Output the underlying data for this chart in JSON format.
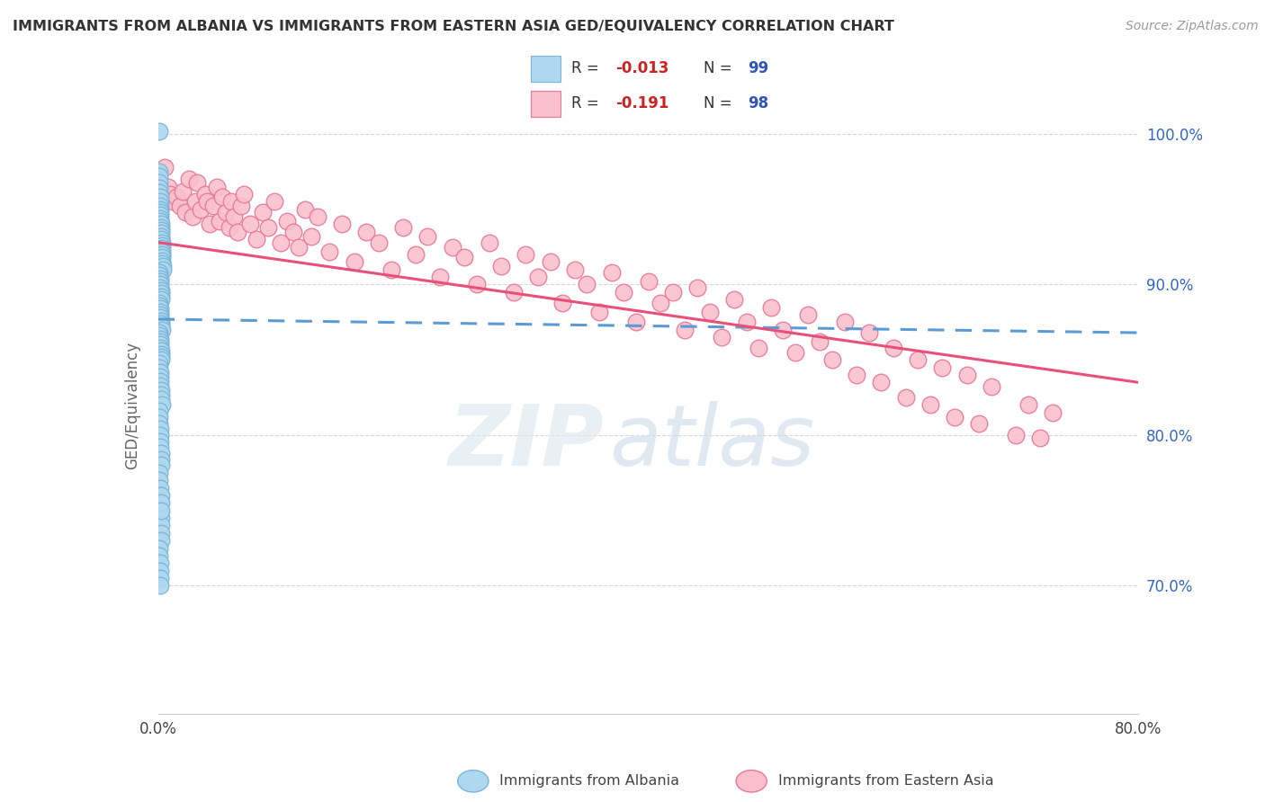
{
  "title": "IMMIGRANTS FROM ALBANIA VS IMMIGRANTS FROM EASTERN ASIA GED/EQUIVALENCY CORRELATION CHART",
  "source": "Source: ZipAtlas.com",
  "ylabel": "GED/Equivalency",
  "yticks": [
    0.7,
    0.8,
    0.9,
    1.0
  ],
  "ytick_labels": [
    "70.0%",
    "80.0%",
    "90.0%",
    "100.0%"
  ],
  "xlim": [
    0.0,
    0.8
  ],
  "ylim": [
    0.615,
    1.025
  ],
  "color_albania": "#add8f0",
  "color_albania_edge": "#7ab4d8",
  "color_eastern_asia": "#f9c0cc",
  "color_eastern_asia_edge": "#e87898",
  "color_albania_line": "#5b9bd5",
  "color_eastern_asia_line": "#e8507a",
  "watermark_text": "ZIP",
  "watermark_text2": "atlas",
  "background_color": "#ffffff",
  "grid_color": "#d8d8d8",
  "albania_x": [
    0.0008,
    0.0008,
    0.001,
    0.001,
    0.0012,
    0.0012,
    0.0014,
    0.0014,
    0.0016,
    0.0016,
    0.0018,
    0.0018,
    0.002,
    0.002,
    0.0022,
    0.0022,
    0.0024,
    0.0024,
    0.0026,
    0.0026,
    0.0028,
    0.0028,
    0.003,
    0.003,
    0.0032,
    0.0032,
    0.0034,
    0.0034,
    0.0036,
    0.0038,
    0.0009,
    0.0011,
    0.0013,
    0.0015,
    0.0017,
    0.0019,
    0.0021,
    0.0023,
    0.0025,
    0.0027,
    0.001,
    0.0012,
    0.0014,
    0.0016,
    0.0018,
    0.002,
    0.0022,
    0.0024,
    0.0026,
    0.0028,
    0.0009,
    0.0011,
    0.0013,
    0.0015,
    0.0017,
    0.0019,
    0.0021,
    0.0023,
    0.0025,
    0.0027,
    0.001,
    0.0012,
    0.0014,
    0.0016,
    0.0018,
    0.002,
    0.0022,
    0.0024,
    0.0026,
    0.0028,
    0.0008,
    0.001,
    0.0012,
    0.0014,
    0.0016,
    0.0018,
    0.002,
    0.0022,
    0.0024,
    0.0026,
    0.0009,
    0.0011,
    0.0013,
    0.0015,
    0.0017,
    0.0019,
    0.0021,
    0.0023,
    0.0025,
    0.0027,
    0.001,
    0.0012,
    0.0014,
    0.0016,
    0.0018,
    0.002,
    0.0022,
    0.0024,
    0.0026
  ],
  "albania_y": [
    1.002,
    0.975,
    0.972,
    0.968,
    0.964,
    0.961,
    0.958,
    0.955,
    0.952,
    0.95,
    0.948,
    0.946,
    0.944,
    0.942,
    0.94,
    0.938,
    0.936,
    0.934,
    0.932,
    0.93,
    0.928,
    0.926,
    0.924,
    0.922,
    0.92,
    0.918,
    0.916,
    0.914,
    0.912,
    0.91,
    0.908,
    0.906,
    0.904,
    0.902,
    0.9,
    0.898,
    0.896,
    0.894,
    0.892,
    0.89,
    0.888,
    0.886,
    0.884,
    0.882,
    0.88,
    0.878,
    0.876,
    0.874,
    0.872,
    0.87,
    0.868,
    0.866,
    0.864,
    0.862,
    0.86,
    0.858,
    0.856,
    0.854,
    0.852,
    0.85,
    0.848,
    0.845,
    0.842,
    0.839,
    0.836,
    0.833,
    0.83,
    0.827,
    0.824,
    0.82,
    0.816,
    0.812,
    0.808,
    0.804,
    0.8,
    0.796,
    0.792,
    0.788,
    0.784,
    0.78,
    0.775,
    0.77,
    0.765,
    0.76,
    0.755,
    0.75,
    0.745,
    0.74,
    0.735,
    0.73,
    0.725,
    0.72,
    0.715,
    0.71,
    0.705,
    0.7,
    0.76,
    0.755,
    0.75
  ],
  "eastern_asia_x": [
    0.005,
    0.008,
    0.01,
    0.012,
    0.015,
    0.018,
    0.02,
    0.022,
    0.025,
    0.028,
    0.03,
    0.032,
    0.035,
    0.038,
    0.04,
    0.042,
    0.045,
    0.048,
    0.05,
    0.052,
    0.055,
    0.058,
    0.06,
    0.062,
    0.065,
    0.068,
    0.07,
    0.075,
    0.08,
    0.085,
    0.09,
    0.095,
    0.1,
    0.105,
    0.11,
    0.115,
    0.12,
    0.125,
    0.13,
    0.14,
    0.15,
    0.16,
    0.17,
    0.18,
    0.19,
    0.2,
    0.21,
    0.22,
    0.23,
    0.24,
    0.25,
    0.26,
    0.27,
    0.28,
    0.29,
    0.3,
    0.31,
    0.32,
    0.33,
    0.34,
    0.35,
    0.36,
    0.37,
    0.38,
    0.39,
    0.4,
    0.41,
    0.42,
    0.43,
    0.44,
    0.45,
    0.46,
    0.47,
    0.48,
    0.49,
    0.5,
    0.51,
    0.52,
    0.53,
    0.54,
    0.55,
    0.56,
    0.57,
    0.58,
    0.59,
    0.6,
    0.61,
    0.62,
    0.63,
    0.64,
    0.65,
    0.66,
    0.67,
    0.68,
    0.7,
    0.71,
    0.72,
    0.73
  ],
  "eastern_asia_y": [
    0.978,
    0.965,
    0.96,
    0.955,
    0.958,
    0.952,
    0.962,
    0.948,
    0.97,
    0.945,
    0.955,
    0.968,
    0.95,
    0.96,
    0.955,
    0.94,
    0.952,
    0.965,
    0.942,
    0.958,
    0.948,
    0.938,
    0.955,
    0.945,
    0.935,
    0.952,
    0.96,
    0.94,
    0.93,
    0.948,
    0.938,
    0.955,
    0.928,
    0.942,
    0.935,
    0.925,
    0.95,
    0.932,
    0.945,
    0.922,
    0.94,
    0.915,
    0.935,
    0.928,
    0.91,
    0.938,
    0.92,
    0.932,
    0.905,
    0.925,
    0.918,
    0.9,
    0.928,
    0.912,
    0.895,
    0.92,
    0.905,
    0.915,
    0.888,
    0.91,
    0.9,
    0.882,
    0.908,
    0.895,
    0.875,
    0.902,
    0.888,
    0.895,
    0.87,
    0.898,
    0.882,
    0.865,
    0.89,
    0.875,
    0.858,
    0.885,
    0.87,
    0.855,
    0.88,
    0.862,
    0.85,
    0.875,
    0.84,
    0.868,
    0.835,
    0.858,
    0.825,
    0.85,
    0.82,
    0.845,
    0.812,
    0.84,
    0.808,
    0.832,
    0.8,
    0.82,
    0.798,
    0.815
  ]
}
